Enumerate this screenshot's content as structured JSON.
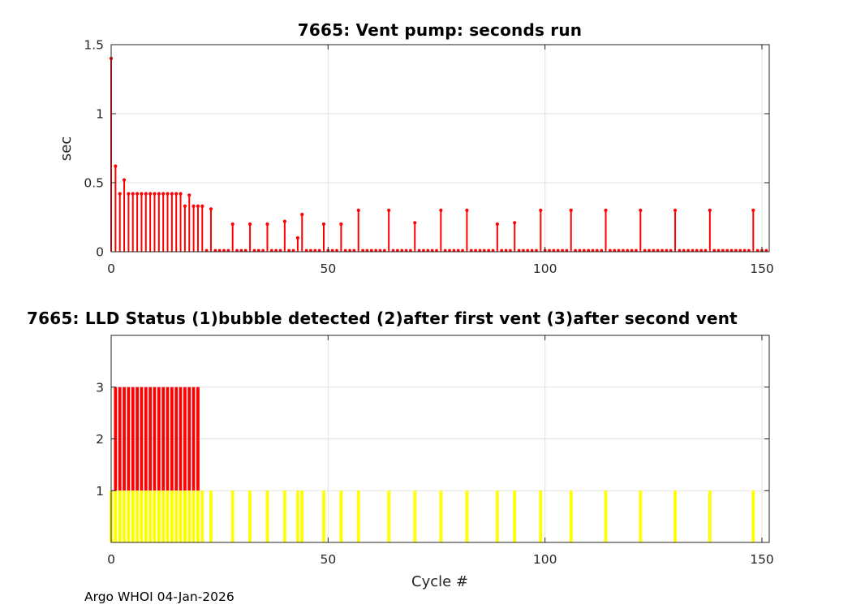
{
  "figure": {
    "footer": "Argo WHOI 04-Jan-2026",
    "colors": {
      "stem": "#ff0000",
      "bar_status3": "#ff0000",
      "bar_status1": "#ffff00",
      "axis": "#262626",
      "grid": "#e2e2e2",
      "title": "#000000"
    }
  },
  "chart_data": [
    {
      "type": "stem",
      "title": "7665: Vent pump: seconds run",
      "xlabel": "",
      "ylabel": "sec",
      "xlim": [
        0,
        151.7
      ],
      "ylim": [
        0,
        1.5
      ],
      "xticks": [
        0,
        50,
        100,
        150
      ],
      "yticks": [
        0,
        0.5,
        1,
        1.5
      ],
      "grid": true,
      "legend": "none",
      "color": "#ff0000",
      "x_start": 0,
      "values": [
        1.4,
        0.62,
        0.42,
        0.52,
        0.42,
        0.42,
        0.42,
        0.42,
        0.42,
        0.42,
        0.42,
        0.42,
        0.42,
        0.42,
        0.42,
        0.42,
        0.42,
        0.33,
        0.41,
        0.33,
        0.33,
        0.33,
        0,
        0.31,
        0,
        0,
        0,
        0,
        0.2,
        0,
        0,
        0,
        0.2,
        0,
        0,
        0,
        0.2,
        0,
        0,
        0,
        0.22,
        0,
        0,
        0.1,
        0.27,
        0,
        0,
        0,
        0,
        0.2,
        0,
        0,
        0,
        0.2,
        0,
        0,
        0,
        0.3,
        0,
        0,
        0,
        0,
        0,
        0,
        0.3,
        0,
        0,
        0,
        0,
        0,
        0.21,
        0,
        0,
        0,
        0,
        0,
        0.3,
        0,
        0,
        0,
        0,
        0,
        0.3,
        0,
        0,
        0,
        0,
        0,
        0,
        0.2,
        0,
        0,
        0,
        0.21,
        0,
        0,
        0,
        0,
        0,
        0.3,
        0,
        0,
        0,
        0,
        0,
        0,
        0.3,
        0,
        0,
        0,
        0,
        0,
        0,
        0,
        0.3,
        0,
        0,
        0,
        0,
        0,
        0,
        0,
        0.3,
        0,
        0,
        0,
        0,
        0,
        0,
        0,
        0.3,
        0,
        0,
        0,
        0,
        0,
        0,
        0,
        0.3,
        0,
        0,
        0,
        0,
        0,
        0,
        0,
        0,
        0,
        0.3,
        0,
        0,
        0
      ]
    },
    {
      "type": "bar",
      "title": "7665: LLD Status   (1)bubble detected   (2)after first vent  (3)after second vent",
      "xlabel": "Cycle #",
      "ylabel": "",
      "xlim": [
        0,
        151.7
      ],
      "ylim": [
        0,
        4
      ],
      "xticks": [
        0,
        50,
        100,
        150
      ],
      "yticks": [
        1,
        2,
        3
      ],
      "grid": true,
      "legend": "none",
      "series": [
        {
          "name": "status-3-after-second-vent",
          "color": "#ff0000",
          "base": 1,
          "top": 3,
          "cycles": [
            1,
            2,
            3,
            4,
            5,
            6,
            7,
            8,
            9,
            10,
            11,
            12,
            13,
            14,
            15,
            16,
            17,
            18,
            19,
            20
          ]
        },
        {
          "name": "status-1-bubble-detected",
          "color": "#ffff00",
          "base": 0,
          "top": 1,
          "cycles": [
            0,
            1,
            2,
            3,
            4,
            5,
            6,
            7,
            8,
            9,
            10,
            11,
            12,
            13,
            14,
            15,
            16,
            17,
            18,
            19,
            20,
            21,
            23,
            28,
            32,
            36,
            40,
            43,
            44,
            49,
            53,
            57,
            64,
            70,
            76,
            82,
            89,
            93,
            99,
            106,
            114,
            122,
            130,
            138,
            148
          ]
        }
      ]
    }
  ]
}
